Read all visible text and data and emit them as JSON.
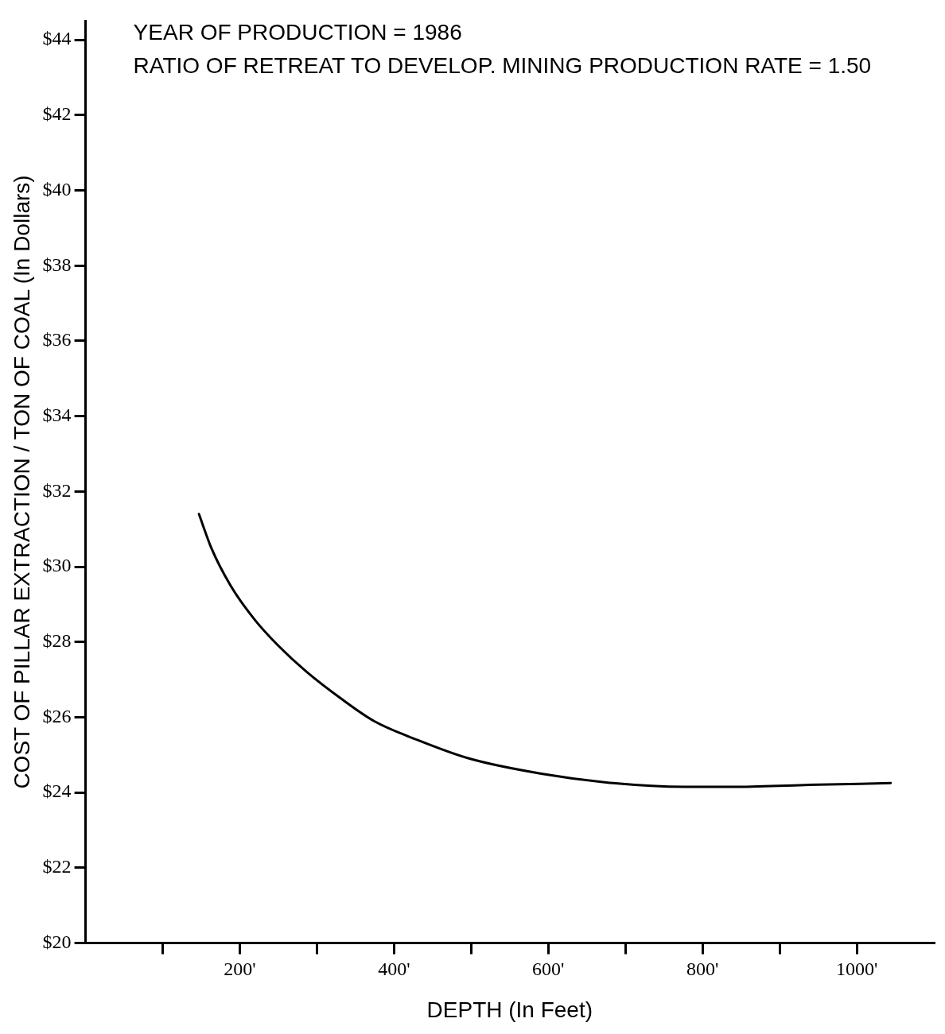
{
  "chart_data": {
    "type": "line",
    "xlabel": "DEPTH (In Feet)",
    "ylabel": "COST OF PILLAR EXTRACTION / TON OF COAL (In Dollars)",
    "annotations": [
      "YEAR OF PRODUCTION = 1986",
      "RATIO OF RETREAT TO DEVELOP. MINING PRODUCTION RATE = 1.50"
    ],
    "x": [
      147,
      163,
      188,
      219,
      250,
      287,
      331,
      374,
      430,
      498,
      591,
      684,
      777,
      839,
      932,
      1044
    ],
    "series": [
      {
        "color": "#000000",
        "values": [
          31.4,
          30.5,
          29.5,
          28.6,
          27.9,
          27.2,
          26.5,
          25.9,
          25.4,
          24.9,
          24.5,
          24.25,
          24.15,
          24.15,
          24.2,
          24.25
        ]
      }
    ],
    "xlim": [
      0,
      1100
    ],
    "xticks": [
      {
        "value": 100,
        "label": null
      },
      {
        "value": 200,
        "label": "200'"
      },
      {
        "value": 300,
        "label": null
      },
      {
        "value": 400,
        "label": "400'"
      },
      {
        "value": 500,
        "label": null
      },
      {
        "value": 600,
        "label": "600'"
      },
      {
        "value": 700,
        "label": null
      },
      {
        "value": 800,
        "label": "800'"
      },
      {
        "value": 900,
        "label": null
      },
      {
        "value": 1000,
        "label": "1000'"
      }
    ],
    "ylim": [
      20,
      44.5
    ],
    "yticks": [
      {
        "value": 20,
        "label": "$20"
      },
      {
        "value": 22,
        "label": "$22"
      },
      {
        "value": 24,
        "label": "$24"
      },
      {
        "value": 26,
        "label": "$26"
      },
      {
        "value": 28,
        "label": "$28"
      },
      {
        "value": 30,
        "label": "$30"
      },
      {
        "value": 32,
        "label": "$32"
      },
      {
        "value": 34,
        "label": "$34"
      },
      {
        "value": 36,
        "label": "$36"
      },
      {
        "value": 38,
        "label": "$38"
      },
      {
        "value": 40,
        "label": "$40"
      },
      {
        "value": 42,
        "label": "$42"
      },
      {
        "value": 44,
        "label": "$44"
      }
    ],
    "marker": "none",
    "line_style": "solid",
    "legend": false
  }
}
